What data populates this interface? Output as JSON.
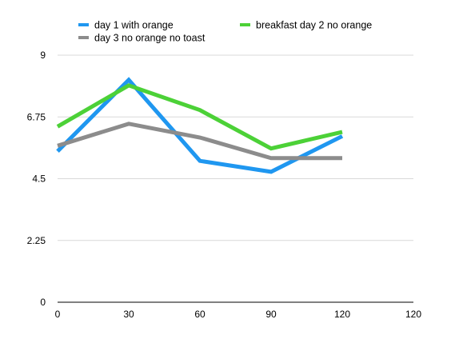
{
  "chart_data": {
    "type": "line",
    "title": "",
    "xlabel": "",
    "ylabel": "",
    "xlim": [
      0,
      120
    ],
    "ylim": [
      0,
      9
    ],
    "x_ticks": [
      "0",
      "30",
      "60",
      "90",
      "120",
      "120"
    ],
    "y_ticks": [
      "0",
      "2.25",
      "4.5",
      "6.75",
      "9"
    ],
    "grid": "horizontal",
    "legend_position": "top",
    "series": [
      {
        "name": "day 1 with orange",
        "color": "#1f97f0",
        "points": [
          [
            0,
            5.5
          ],
          [
            30,
            8.1
          ],
          [
            60,
            5.15
          ],
          [
            90,
            4.75
          ],
          [
            120,
            6.05
          ]
        ]
      },
      {
        "name": "breakfast day 2 no orange",
        "color": "#4cd137",
        "points": [
          [
            0,
            6.4
          ],
          [
            30,
            7.9
          ],
          [
            60,
            7.0
          ],
          [
            90,
            5.6
          ],
          [
            120,
            6.2
          ]
        ]
      },
      {
        "name": "day 3 no orange no toast",
        "color": "#8c8c8c",
        "points": [
          [
            0,
            5.7
          ],
          [
            30,
            6.5
          ],
          [
            60,
            6.0
          ],
          [
            90,
            5.25
          ],
          [
            120,
            5.25
          ]
        ]
      }
    ]
  }
}
